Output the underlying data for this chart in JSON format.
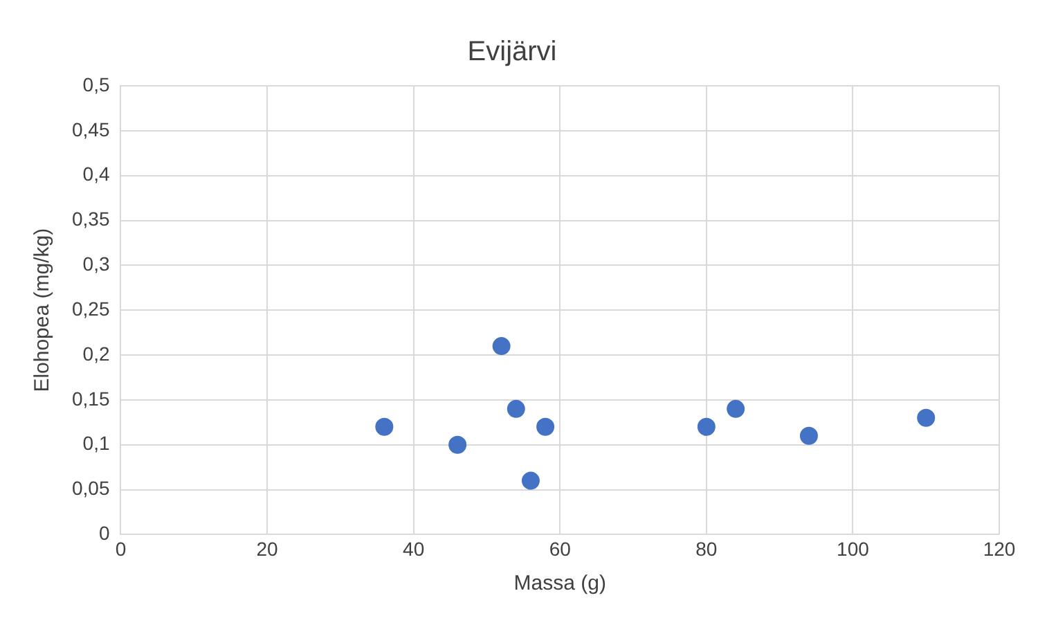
{
  "chart_data": {
    "type": "scatter",
    "title": "Evijärvi",
    "xlabel": "Massa (g)",
    "ylabel": "Elohopea (mg/kg)",
    "x": [
      36,
      46,
      52,
      54,
      56,
      58,
      80,
      84,
      94,
      110
    ],
    "series": [
      {
        "color": "#4472c4",
        "values": [
          0.12,
          0.1,
          0.21,
          0.14,
          0.06,
          0.12,
          0.12,
          0.14,
          0.11,
          0.13
        ]
      }
    ],
    "xlim": [
      0,
      120
    ],
    "xticks": [
      0,
      20,
      40,
      60,
      80,
      100,
      120
    ],
    "ylim": [
      0,
      0.5
    ],
    "yticks": [
      0,
      {
        "value": 0.05,
        "label": "0,05"
      },
      {
        "value": 0.1,
        "label": "0,1"
      },
      {
        "value": 0.15,
        "label": "0,15"
      },
      {
        "value": 0.2,
        "label": "0,2"
      },
      {
        "value": 0.25,
        "label": "0,25"
      },
      {
        "value": 0.3,
        "label": "0,3"
      },
      {
        "value": 0.35,
        "label": "0,35"
      },
      {
        "value": 0.4,
        "label": "0,4"
      },
      {
        "value": 0.45,
        "label": "0,45"
      },
      {
        "value": 0.5,
        "label": "0,5"
      }
    ],
    "grid": true,
    "marker": "circle"
  }
}
